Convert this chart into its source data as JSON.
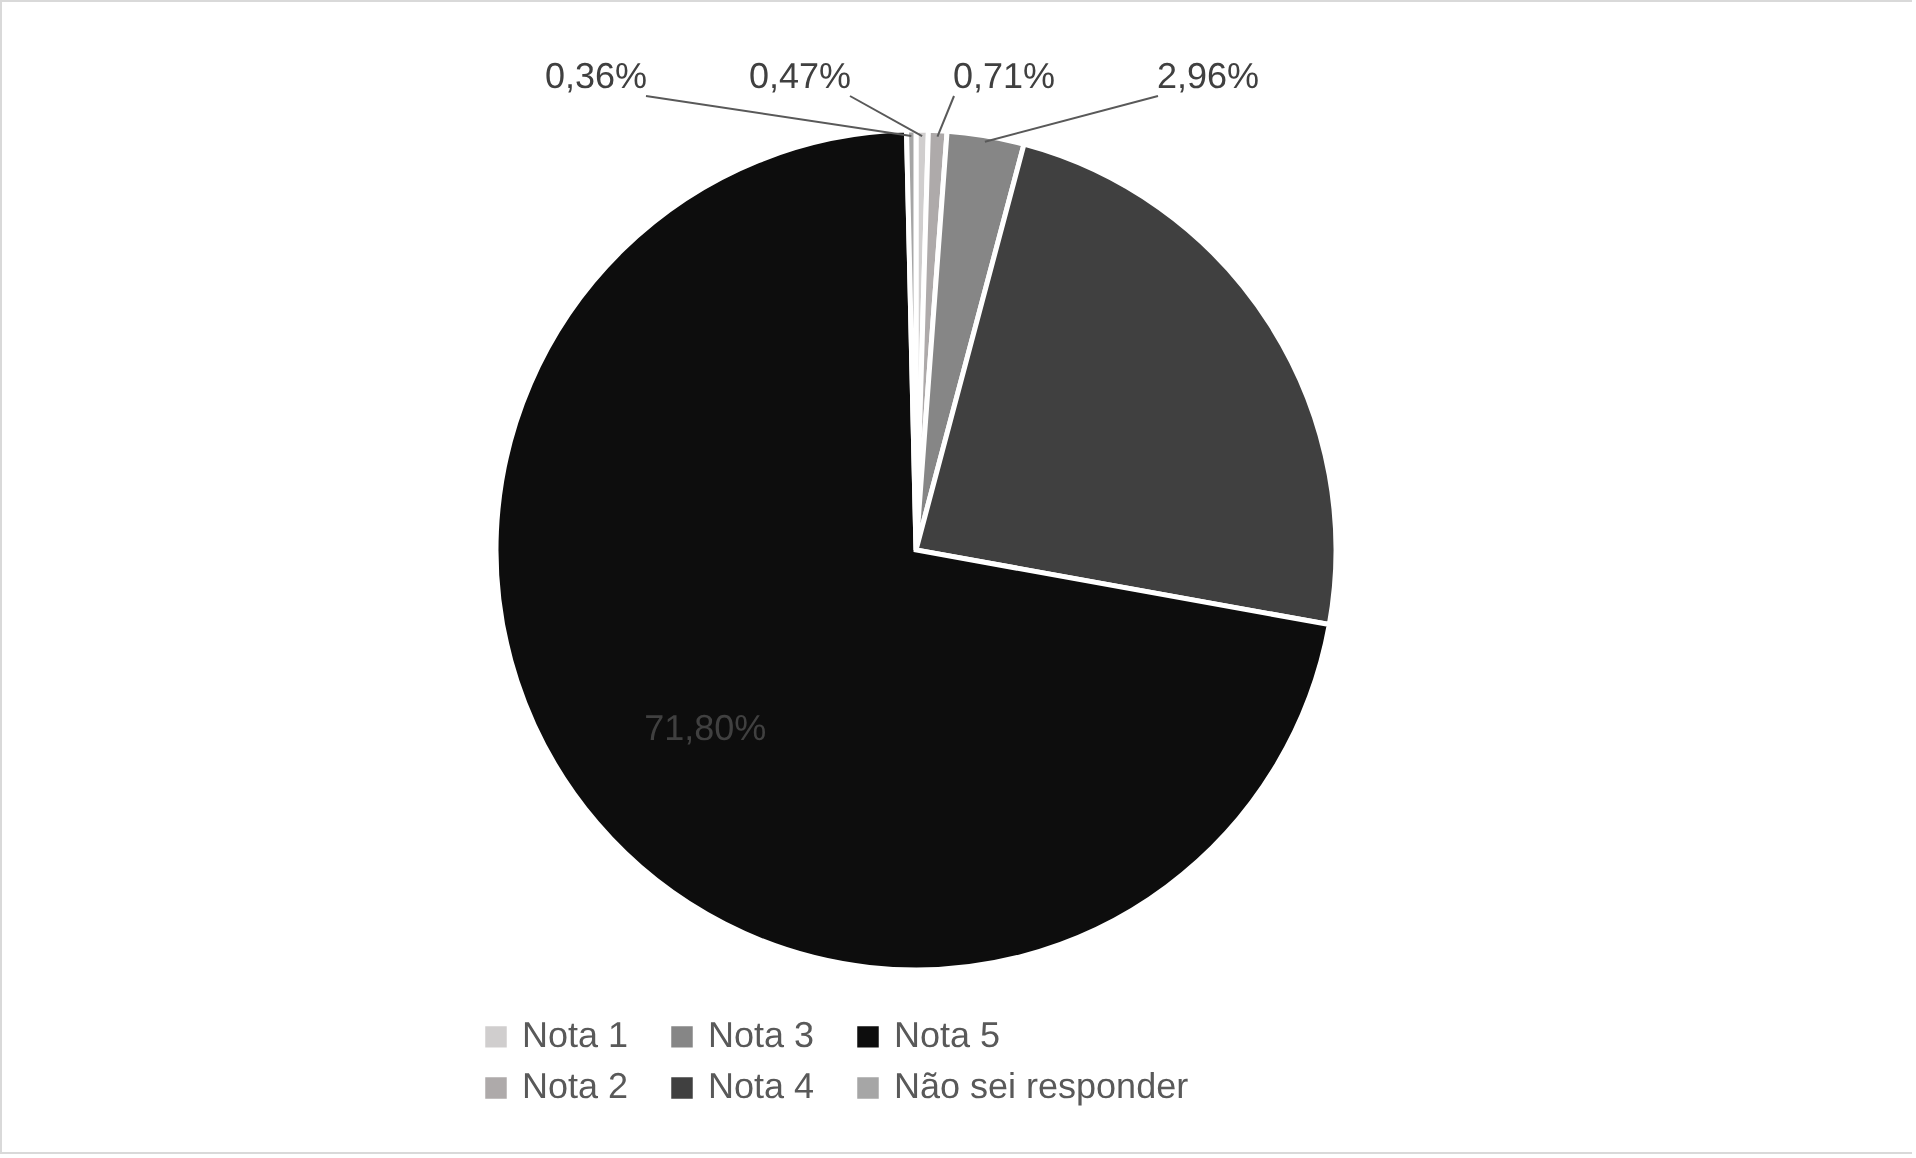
{
  "chart_data": {
    "type": "pie",
    "categories": [
      "Nota 1",
      "Nota 2",
      "Nota 3",
      "Nota 4",
      "Nota 5",
      "Não sei responder"
    ],
    "values": [
      0.47,
      0.71,
      2.96,
      23.7,
      71.8,
      0.36
    ],
    "colors": [
      "#d0cece",
      "#aeaaaa",
      "#868686",
      "#404040",
      "#0d0d0d",
      "#a6a6a6"
    ],
    "value_labels": [
      "0,47%",
      "0,71%",
      "2,96%",
      null,
      "71,80%",
      "0,36%"
    ],
    "legend": "bottom"
  }
}
